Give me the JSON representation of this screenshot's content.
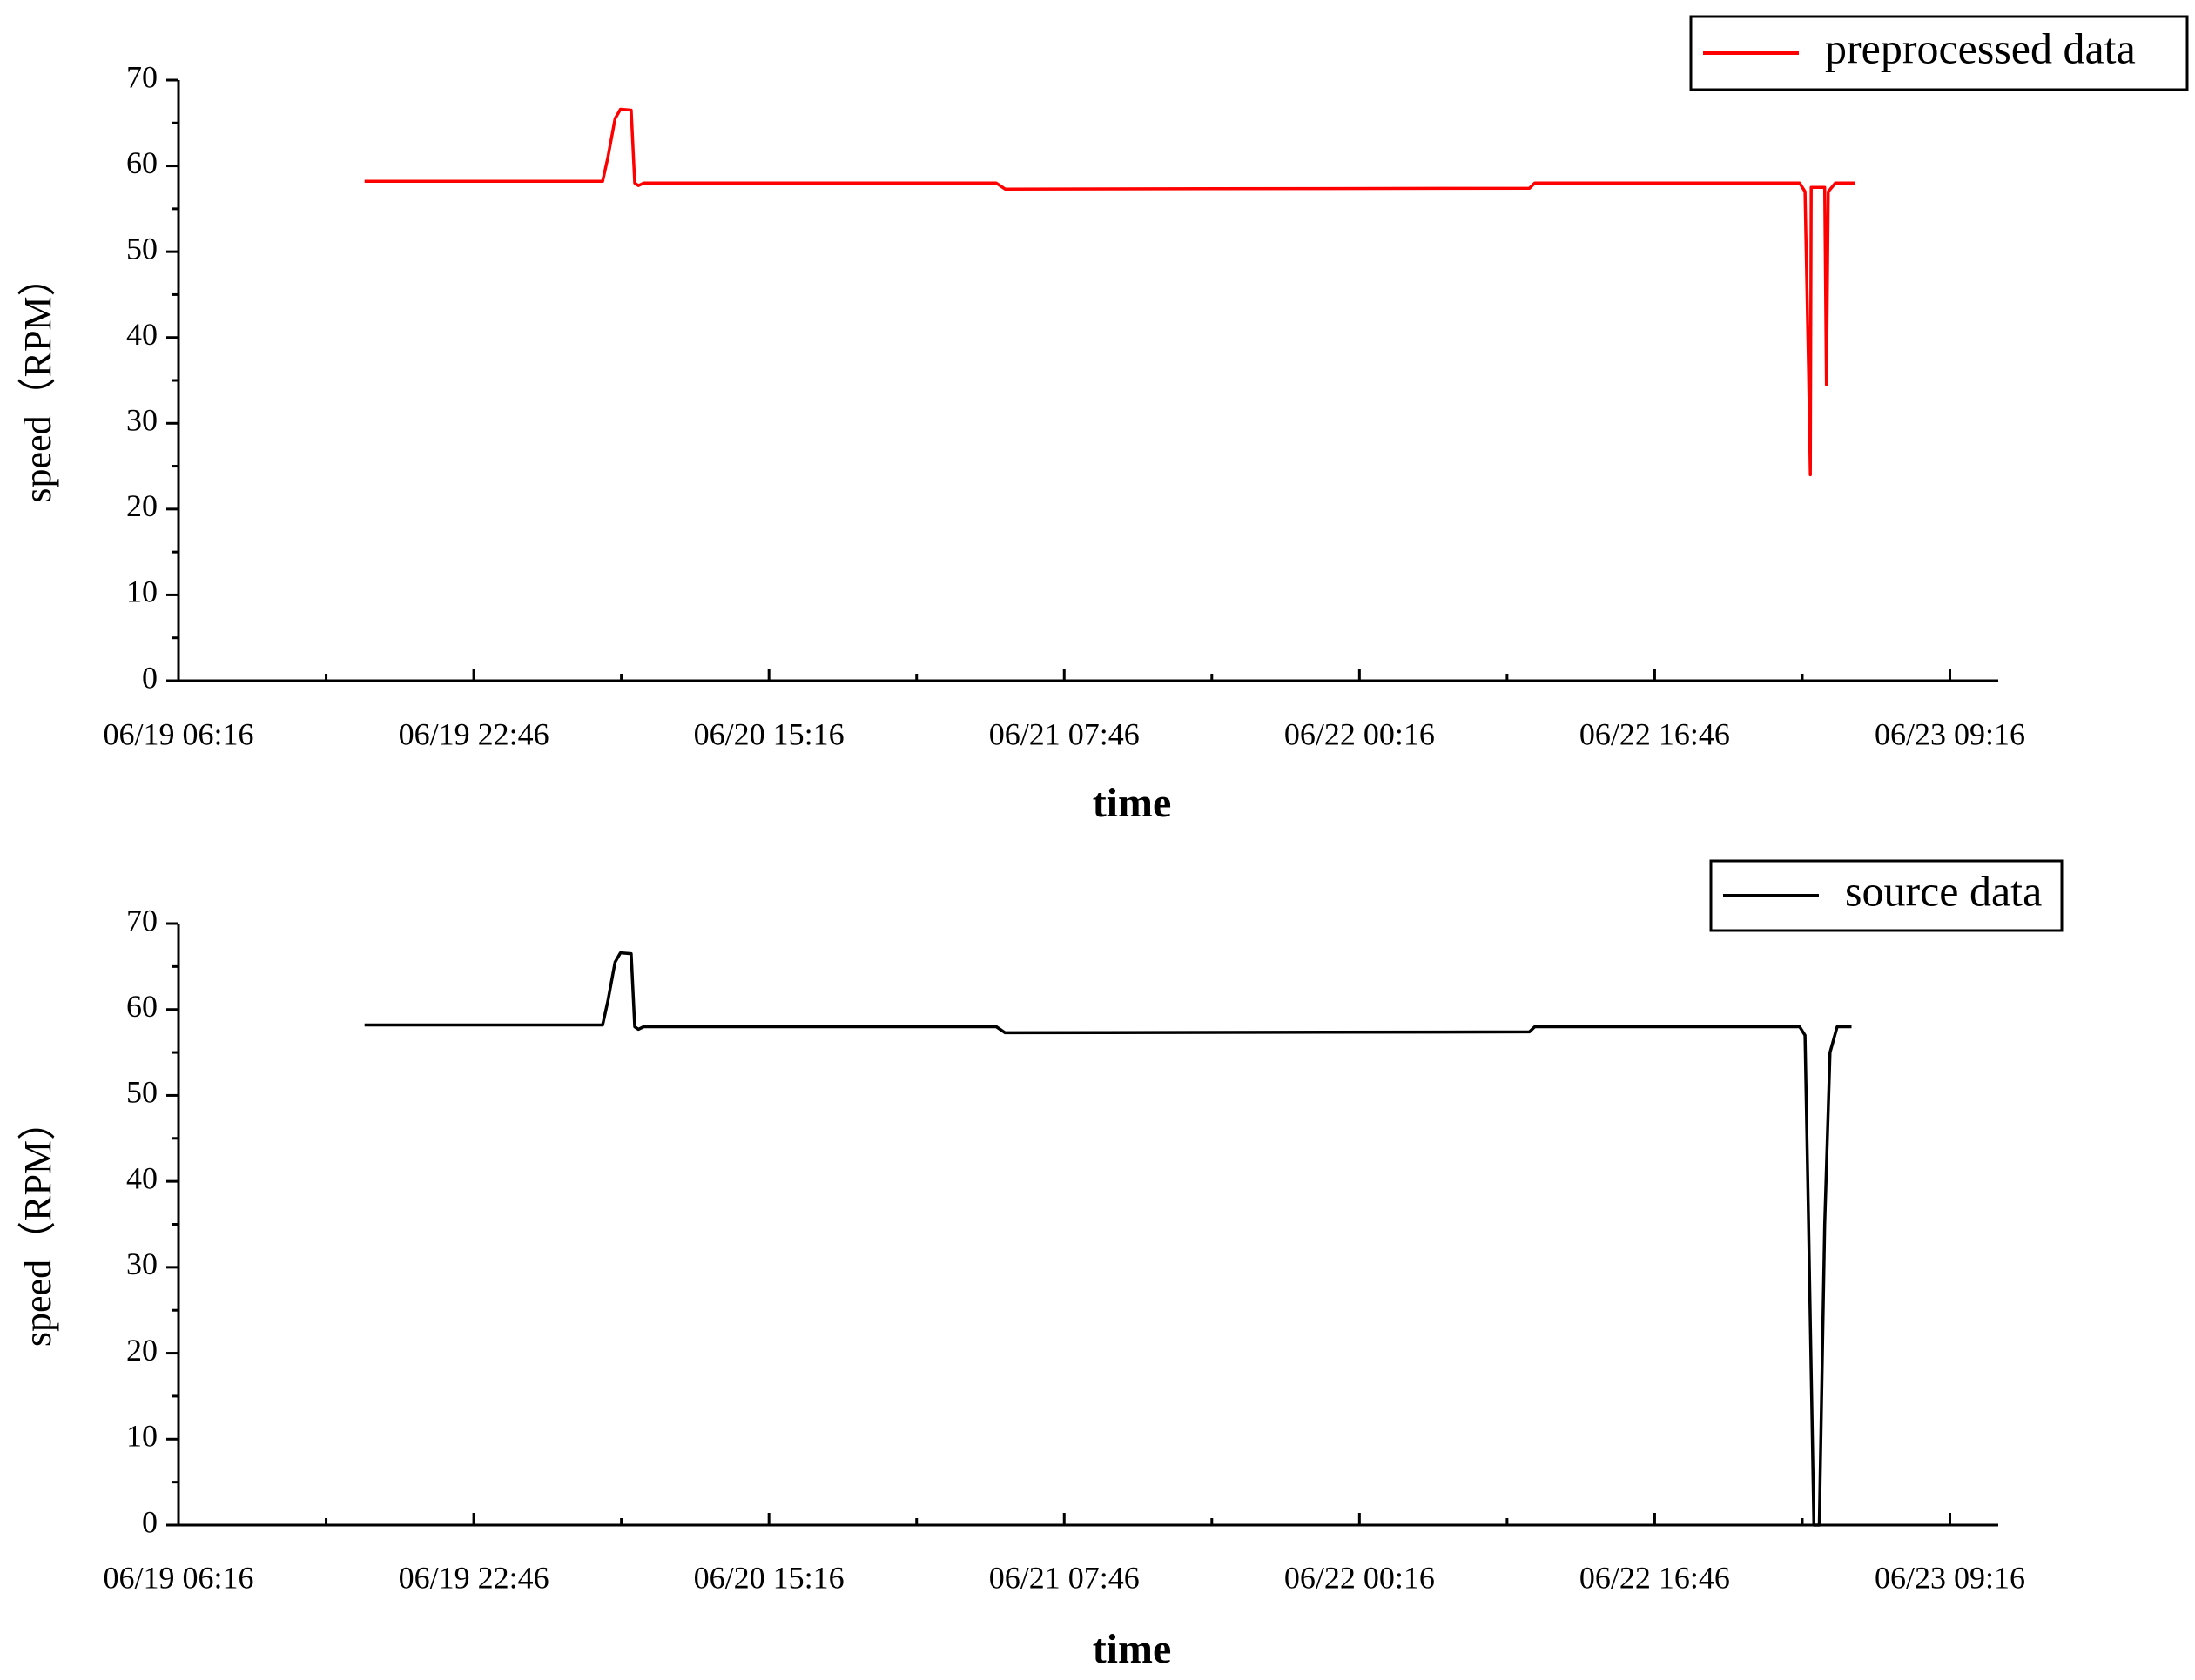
{
  "chart_data": [
    {
      "type": "line",
      "x_label": "time",
      "y_label": "speed（RPM）",
      "legend": "upper right",
      "x": [
        "06/19 16:40",
        "06/20 05:58",
        "06/20 06:16",
        "06/20 06:40",
        "06/20 06:58",
        "06/20 07:34",
        "06/20 07:46",
        "06/20 07:58",
        "06/20 08:16",
        "06/21 03:58",
        "06/21 04:28",
        "06/22 09:46",
        "06/22 10:04",
        "06/23 00:52",
        "06/23 01:10",
        "06/23 01:22",
        "06/23 01:28",
        "06/23 01:31",
        "06/23 02:16",
        "06/23 02:22",
        "06/23 02:28",
        "06/23 02:52",
        "06/23 03:58"
      ],
      "series": [
        {
          "name": "preprocessed data",
          "color": "#ff0000",
          "values": [
            58.2,
            58.2,
            61,
            65.5,
            66.6,
            66.5,
            58,
            57.7,
            58,
            58,
            57.3,
            57.4,
            58,
            58,
            57,
            36,
            24,
            57.5,
            57.5,
            34.5,
            57,
            58,
            58
          ]
        }
      ],
      "xlim": [
        "06/19 06:16",
        "06/23 11:58"
      ],
      "ylim": [
        0,
        70
      ],
      "xticks": [
        "06/19 06:16",
        "06/19 22:46",
        "06/20 15:16",
        "06/21 07:46",
        "06/22 00:16",
        "06/22 16:46",
        "06/23 09:16"
      ],
      "yticks": [
        0,
        10,
        20,
        30,
        40,
        50,
        60,
        70
      ]
    },
    {
      "type": "line",
      "x_label": "time",
      "y_label": "speed（RPM）",
      "legend": "upper right",
      "x": [
        "06/19 16:40",
        "06/20 05:58",
        "06/20 06:16",
        "06/20 06:40",
        "06/20 06:58",
        "06/20 07:34",
        "06/20 07:46",
        "06/20 07:58",
        "06/20 08:16",
        "06/21 03:58",
        "06/21 04:28",
        "06/22 09:46",
        "06/22 10:04",
        "06/23 00:52",
        "06/23 01:10",
        "06/23 01:22",
        "06/23 01:40",
        "06/23 01:58",
        "06/23 02:16",
        "06/23 02:34",
        "06/23 02:58",
        "06/23 03:46"
      ],
      "series": [
        {
          "name": "source data",
          "color": "#000000",
          "values": [
            58.2,
            58.2,
            61,
            65.5,
            66.6,
            66.5,
            58,
            57.7,
            58,
            58,
            57.3,
            57.4,
            58,
            58,
            57,
            35,
            0,
            0,
            35,
            55,
            58,
            58
          ]
        }
      ],
      "xlim": [
        "06/19 06:16",
        "06/23 11:58"
      ],
      "ylim": [
        0,
        70
      ],
      "xticks": [
        "06/19 06:16",
        "06/19 22:46",
        "06/20 15:16",
        "06/21 07:46",
        "06/22 00:16",
        "06/22 16:46",
        "06/23 09:16"
      ],
      "yticks": [
        0,
        10,
        20,
        30,
        40,
        50,
        60,
        70
      ]
    }
  ]
}
